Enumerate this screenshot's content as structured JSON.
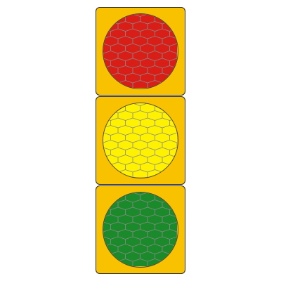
{
  "colors": {
    "housing": "#f8c200",
    "red": "#d91e18",
    "yellow": "#fff200",
    "green": "#1a8a2b",
    "hex_pattern": "#8a8a8a"
  },
  "lamps": [
    {
      "name": "red",
      "state": "on"
    },
    {
      "name": "yellow",
      "state": "on"
    },
    {
      "name": "green",
      "state": "on"
    }
  ]
}
